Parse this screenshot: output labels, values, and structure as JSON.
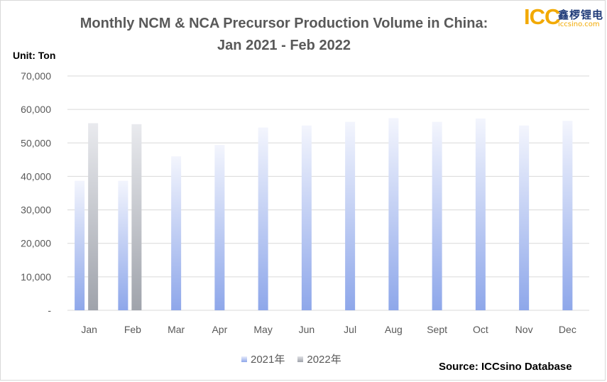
{
  "chart_data": {
    "type": "bar",
    "title_line1": "Monthly NCM & NCA Precursor Production Volume in China:",
    "title_line2": "Jan 2021 - Feb 2022",
    "unit": "Unit: Ton",
    "categories": [
      "Jan",
      "Feb",
      "Mar",
      "Apr",
      "May",
      "Jun",
      "Jul",
      "Aug",
      "Sept",
      "Oct",
      "Nov",
      "Dec"
    ],
    "series": [
      {
        "name": "2021年",
        "color": "#8ea7ea",
        "values": [
          38700,
          38700,
          46000,
          49400,
          54600,
          55200,
          56300,
          57400,
          56300,
          57300,
          55200,
          56600
        ]
      },
      {
        "name": "2022年",
        "color": "#9fa3ab",
        "values": [
          55900,
          55600,
          null,
          null,
          null,
          null,
          null,
          null,
          null,
          null,
          null,
          null
        ]
      }
    ],
    "ylim": [
      0,
      70000
    ],
    "yticks": [
      0,
      10000,
      20000,
      30000,
      40000,
      50000,
      60000,
      70000
    ],
    "ytick_labels": [
      "-",
      "10,000",
      "20,000",
      "30,000",
      "40,000",
      "50,000",
      "60,000",
      "70,000"
    ],
    "grid": true,
    "legend_position": "bottom"
  },
  "source": "Source: ICCsino Database",
  "logo": {
    "text": "ICC",
    "cn": "鑫椤锂电",
    "domain": "iccsino.com"
  }
}
